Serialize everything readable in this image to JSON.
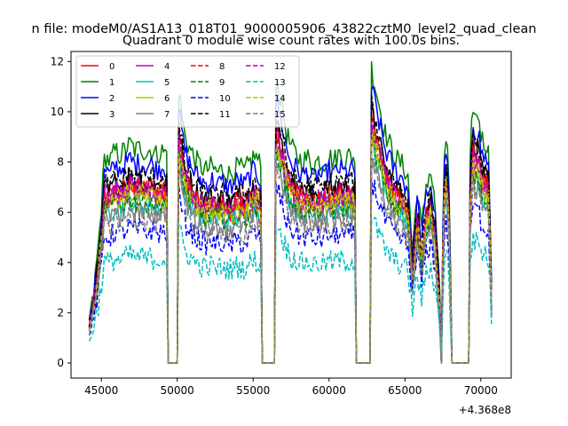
{
  "chart_data": {
    "type": "line",
    "suptitle": "n file: modeM0/AS1A13_018T01_9000005906_43822cztM0_level2_quad_clean",
    "title": "Quadrant 0 module wise count rates with 100.0s bins.",
    "xlabel": "",
    "ylabel": "",
    "x_offset_label": "+4.368e8",
    "xlim": [
      43000,
      72000
    ],
    "ylim": [
      -0.6,
      12.4
    ],
    "x_ticks": [
      45000,
      50000,
      55000,
      60000,
      65000,
      70000
    ],
    "y_ticks": [
      0,
      2,
      4,
      6,
      8,
      10,
      12
    ],
    "grid": false,
    "legend_position": "upper-left",
    "legend_columns": 4,
    "series": [
      {
        "name": "0",
        "color": "#ff0000",
        "dash": "solid",
        "level": 7.0,
        "peak": 10.2
      },
      {
        "name": "1",
        "color": "#008000",
        "dash": "solid",
        "level": 8.7,
        "peak": 11.8
      },
      {
        "name": "2",
        "color": "#0000ff",
        "dash": "solid",
        "level": 8.1,
        "peak": 11.2
      },
      {
        "name": "3",
        "color": "#000000",
        "dash": "solid",
        "level": 7.4,
        "peak": 10.6
      },
      {
        "name": "4",
        "color": "#bf00bf",
        "dash": "solid",
        "level": 7.1,
        "peak": 10.3
      },
      {
        "name": "5",
        "color": "#00bfbf",
        "dash": "solid",
        "level": 6.5,
        "peak": 9.7
      },
      {
        "name": "6",
        "color": "#bfbf00",
        "dash": "solid",
        "level": 6.9,
        "peak": 10.1
      },
      {
        "name": "7",
        "color": "#808080",
        "dash": "solid",
        "level": 6.2,
        "peak": 9.6
      },
      {
        "name": "8",
        "color": "#ff0000",
        "dash": "dashed",
        "level": 7.2,
        "peak": 10.0
      },
      {
        "name": "9",
        "color": "#008000",
        "dash": "dashed",
        "level": 6.6,
        "peak": 9.9
      },
      {
        "name": "10",
        "color": "#0000ff",
        "dash": "dashed",
        "level": 5.4,
        "peak": 9.0
      },
      {
        "name": "11",
        "color": "#000000",
        "dash": "dashed",
        "level": 7.6,
        "peak": 10.4
      },
      {
        "name": "12",
        "color": "#bf00bf",
        "dash": "dashed",
        "level": 7.0,
        "peak": 10.0
      },
      {
        "name": "13",
        "color": "#00bfbf",
        "dash": "dashed",
        "level": 4.3,
        "peak": 6.0
      },
      {
        "name": "14",
        "color": "#bfbf00",
        "dash": "dashed",
        "level": 6.8,
        "peak": 9.8
      },
      {
        "name": "15",
        "color": "#808080",
        "dash": "dashed",
        "level": 5.9,
        "peak": 9.3
      }
    ],
    "segments": [
      {
        "start": 44200,
        "end": 49300,
        "profile": [
          0.2,
          0.35,
          0.6,
          0.95,
          0.92,
          0.97,
          0.95,
          0.98,
          1.0,
          0.97,
          0.99,
          0.96,
          0.98,
          0.95,
          0.97,
          0.96
        ]
      },
      {
        "start": 50100,
        "end": 55500,
        "profile": [
          1.25,
          1.05,
          0.98,
          0.93,
          0.9,
          0.88,
          0.9,
          0.87,
          0.89,
          0.86,
          0.88,
          0.9,
          0.87,
          0.92,
          0.95,
          0.9
        ]
      },
      {
        "start": 56500,
        "end": 61700,
        "profile": [
          1.3,
          1.2,
          1.05,
          0.98,
          0.95,
          0.92,
          0.94,
          0.9,
          0.93,
          0.91,
          0.95,
          0.92,
          0.96,
          0.93,
          0.95,
          0.94
        ]
      },
      {
        "start": 62800,
        "end": 67300,
        "profile": [
          1.35,
          1.25,
          1.15,
          1.05,
          1.0,
          0.95,
          0.92,
          0.9,
          0.85,
          0.5,
          0.8,
          0.6,
          0.82,
          0.88,
          0.7,
          0.3
        ]
      },
      {
        "start": 67500,
        "end": 68000,
        "profile": [
          0.6,
          1.05,
          1.0,
          0.9,
          0.4
        ]
      },
      {
        "start": 69300,
        "end": 70700,
        "profile": [
          0.9,
          1.2,
          1.1,
          1.15,
          1.05,
          1.0,
          1.02,
          0.95,
          0.35
        ]
      }
    ]
  }
}
